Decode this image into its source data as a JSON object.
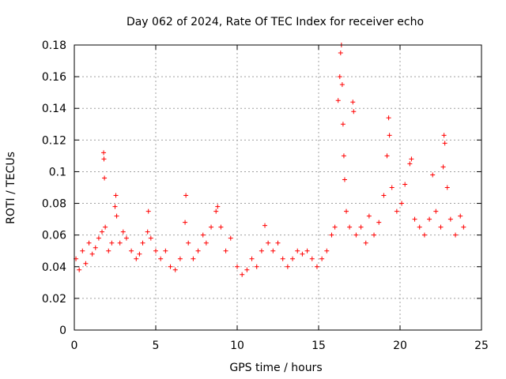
{
  "chart_data": {
    "type": "scatter",
    "title": "Day 062 of 2024, Rate Of TEC Index for receiver echo",
    "xlabel": "GPS time / hours",
    "ylabel": "ROTI / TECUs",
    "xlim": [
      0,
      25
    ],
    "ylim": [
      0,
      0.18
    ],
    "xticks": [
      0,
      5,
      10,
      15,
      20,
      25
    ],
    "yticks": [
      0,
      0.02,
      0.04,
      0.06,
      0.08,
      0.1,
      0.12,
      0.14,
      0.16,
      0.18
    ],
    "xtick_labels": [
      "0",
      "5",
      "10",
      "15",
      "20",
      "25"
    ],
    "ytick_labels": [
      "0",
      "0.02",
      "0.04",
      "0.06",
      "0.08",
      "0.1",
      "0.12",
      "0.14",
      "0.16",
      "0.18"
    ],
    "grid": true,
    "marker": "+",
    "color": "#ff0000",
    "series": [
      {
        "points": [
          [
            0.1,
            0.045
          ],
          [
            0.3,
            0.038
          ],
          [
            0.5,
            0.05
          ],
          [
            0.7,
            0.042
          ],
          [
            0.9,
            0.055
          ],
          [
            1.1,
            0.048
          ],
          [
            1.3,
            0.052
          ],
          [
            1.5,
            0.058
          ],
          [
            1.7,
            0.062
          ],
          [
            1.8,
            0.112
          ],
          [
            1.82,
            0.108
          ],
          [
            1.85,
            0.096
          ],
          [
            1.9,
            0.065
          ],
          [
            2.1,
            0.05
          ],
          [
            2.3,
            0.055
          ],
          [
            2.5,
            0.078
          ],
          [
            2.55,
            0.085
          ],
          [
            2.6,
            0.072
          ],
          [
            2.8,
            0.055
          ],
          [
            3.0,
            0.062
          ],
          [
            3.2,
            0.058
          ],
          [
            3.5,
            0.05
          ],
          [
            3.8,
            0.045
          ],
          [
            4.0,
            0.048
          ],
          [
            4.2,
            0.055
          ],
          [
            4.5,
            0.062
          ],
          [
            4.55,
            0.075
          ],
          [
            4.7,
            0.058
          ],
          [
            5.0,
            0.05
          ],
          [
            5.3,
            0.045
          ],
          [
            5.6,
            0.05
          ],
          [
            5.9,
            0.04
          ],
          [
            6.2,
            0.038
          ],
          [
            6.5,
            0.045
          ],
          [
            6.8,
            0.068
          ],
          [
            6.85,
            0.085
          ],
          [
            7.0,
            0.055
          ],
          [
            7.3,
            0.045
          ],
          [
            7.6,
            0.05
          ],
          [
            7.9,
            0.06
          ],
          [
            8.1,
            0.055
          ],
          [
            8.4,
            0.065
          ],
          [
            8.7,
            0.075
          ],
          [
            8.8,
            0.078
          ],
          [
            9.0,
            0.065
          ],
          [
            9.3,
            0.05
          ],
          [
            9.6,
            0.058
          ],
          [
            10.0,
            0.04
          ],
          [
            10.3,
            0.035
          ],
          [
            10.6,
            0.038
          ],
          [
            10.9,
            0.045
          ],
          [
            11.2,
            0.04
          ],
          [
            11.5,
            0.05
          ],
          [
            11.7,
            0.066
          ],
          [
            11.9,
            0.055
          ],
          [
            12.2,
            0.05
          ],
          [
            12.5,
            0.055
          ],
          [
            12.8,
            0.045
          ],
          [
            13.1,
            0.04
          ],
          [
            13.4,
            0.045
          ],
          [
            13.7,
            0.05
          ],
          [
            14.0,
            0.048
          ],
          [
            14.3,
            0.05
          ],
          [
            14.6,
            0.045
          ],
          [
            14.9,
            0.04
          ],
          [
            15.2,
            0.045
          ],
          [
            15.5,
            0.05
          ],
          [
            15.8,
            0.06
          ],
          [
            16.0,
            0.065
          ],
          [
            16.2,
            0.145
          ],
          [
            16.3,
            0.16
          ],
          [
            16.35,
            0.175
          ],
          [
            16.4,
            0.18
          ],
          [
            16.45,
            0.155
          ],
          [
            16.5,
            0.13
          ],
          [
            16.55,
            0.11
          ],
          [
            16.6,
            0.095
          ],
          [
            16.7,
            0.075
          ],
          [
            16.9,
            0.065
          ],
          [
            17.1,
            0.144
          ],
          [
            17.15,
            0.138
          ],
          [
            17.3,
            0.06
          ],
          [
            17.6,
            0.065
          ],
          [
            17.9,
            0.055
          ],
          [
            18.1,
            0.072
          ],
          [
            18.4,
            0.06
          ],
          [
            18.7,
            0.068
          ],
          [
            19.0,
            0.085
          ],
          [
            19.2,
            0.11
          ],
          [
            19.3,
            0.134
          ],
          [
            19.35,
            0.123
          ],
          [
            19.5,
            0.09
          ],
          [
            19.8,
            0.075
          ],
          [
            20.1,
            0.08
          ],
          [
            20.3,
            0.092
          ],
          [
            20.6,
            0.105
          ],
          [
            20.7,
            0.108
          ],
          [
            20.9,
            0.07
          ],
          [
            21.2,
            0.065
          ],
          [
            21.5,
            0.06
          ],
          [
            21.8,
            0.07
          ],
          [
            22.0,
            0.098
          ],
          [
            22.2,
            0.075
          ],
          [
            22.5,
            0.065
          ],
          [
            22.65,
            0.103
          ],
          [
            22.7,
            0.123
          ],
          [
            22.75,
            0.118
          ],
          [
            22.9,
            0.09
          ],
          [
            23.1,
            0.07
          ],
          [
            23.4,
            0.06
          ],
          [
            23.7,
            0.072
          ],
          [
            23.9,
            0.065
          ]
        ]
      }
    ]
  }
}
